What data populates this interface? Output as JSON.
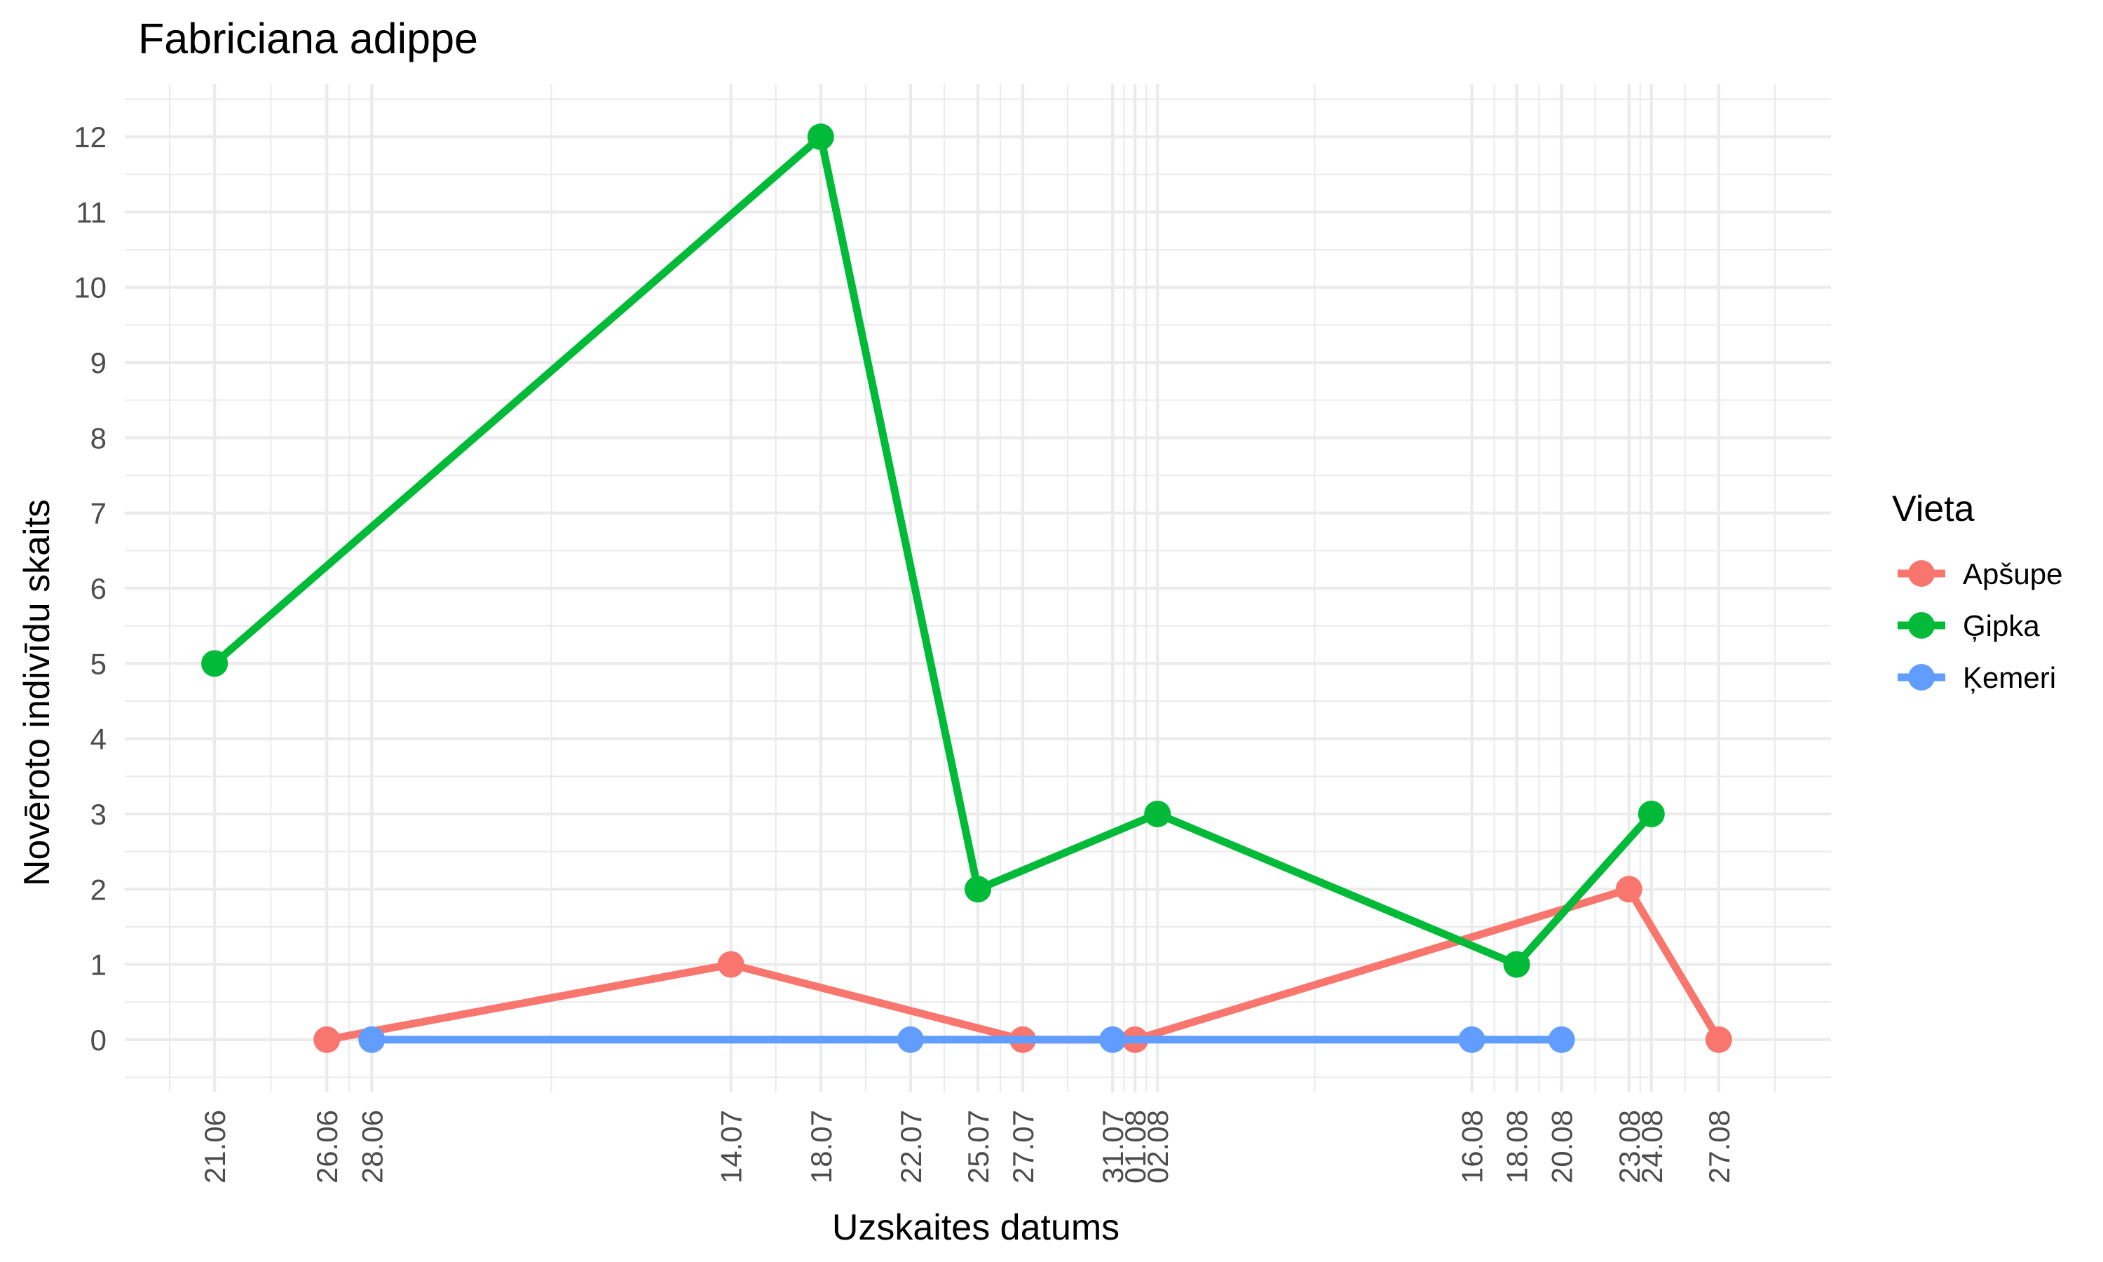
{
  "chart_data": {
    "type": "line",
    "title": "Fabriciana adippe",
    "xlabel": "Uzskaites datums",
    "ylabel": "Novēroto indivīdu skaits",
    "ylim": [
      -0.7,
      12.7
    ],
    "yticks": [
      0,
      1,
      2,
      3,
      4,
      5,
      6,
      7,
      8,
      9,
      10,
      11,
      12
    ],
    "x_type": "date",
    "x_range": [
      "2023-06-17",
      "2023-09-01"
    ],
    "x_ticks": [
      {
        "date": "2023-06-21",
        "label": "21.06"
      },
      {
        "date": "2023-06-26",
        "label": "26.06"
      },
      {
        "date": "2023-06-28",
        "label": "28.06"
      },
      {
        "date": "2023-07-14",
        "label": "14.07"
      },
      {
        "date": "2023-07-18",
        "label": "18.07"
      },
      {
        "date": "2023-07-22",
        "label": "22.07"
      },
      {
        "date": "2023-07-25",
        "label": "25.07"
      },
      {
        "date": "2023-07-27",
        "label": "27.07"
      },
      {
        "date": "2023-07-31",
        "label": "31.07"
      },
      {
        "date": "2023-08-01",
        "label": "01.08"
      },
      {
        "date": "2023-08-02",
        "label": "02.08"
      },
      {
        "date": "2023-08-16",
        "label": "16.08"
      },
      {
        "date": "2023-08-18",
        "label": "18.08"
      },
      {
        "date": "2023-08-20",
        "label": "20.08"
      },
      {
        "date": "2023-08-23",
        "label": "23.08"
      },
      {
        "date": "2023-08-24",
        "label": "24.08"
      },
      {
        "date": "2023-08-27",
        "label": "27.08"
      }
    ],
    "legend": {
      "title": "Vieta",
      "position": "right"
    },
    "grid": true,
    "series": [
      {
        "name": "Apšupe",
        "color": "#F8766D",
        "points": [
          {
            "x": "2023-06-26",
            "y": 0
          },
          {
            "x": "2023-07-14",
            "y": 1
          },
          {
            "x": "2023-07-27",
            "y": 0
          },
          {
            "x": "2023-08-01",
            "y": 0
          },
          {
            "x": "2023-08-23",
            "y": 2
          },
          {
            "x": "2023-08-27",
            "y": 0
          }
        ]
      },
      {
        "name": "Ģipka",
        "color": "#00BA38",
        "points": [
          {
            "x": "2023-06-21",
            "y": 5
          },
          {
            "x": "2023-07-18",
            "y": 12
          },
          {
            "x": "2023-07-25",
            "y": 2
          },
          {
            "x": "2023-08-02",
            "y": 3
          },
          {
            "x": "2023-08-18",
            "y": 1
          },
          {
            "x": "2023-08-24",
            "y": 3
          }
        ]
      },
      {
        "name": "Ķemeri",
        "color": "#619CFF",
        "points": [
          {
            "x": "2023-06-28",
            "y": 0
          },
          {
            "x": "2023-07-22",
            "y": 0
          },
          {
            "x": "2023-07-31",
            "y": 0
          },
          {
            "x": "2023-08-16",
            "y": 0
          },
          {
            "x": "2023-08-20",
            "y": 0
          }
        ]
      }
    ]
  }
}
